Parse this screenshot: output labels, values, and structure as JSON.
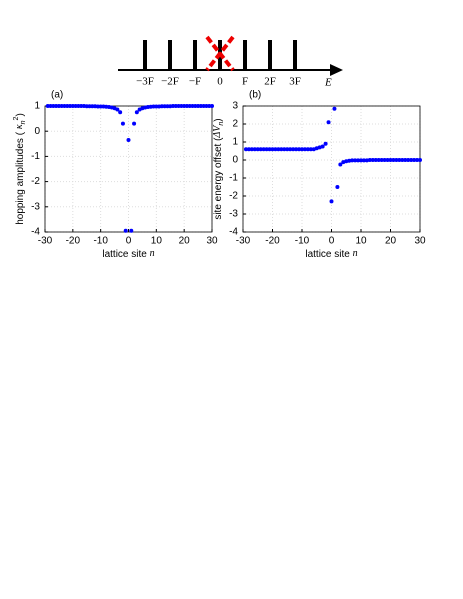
{
  "diagram": {
    "labels": [
      "−3F",
      "−2F",
      "−F",
      "0",
      "F",
      "2F",
      "3F"
    ],
    "axis_label": "E"
  },
  "chart_data": [
    {
      "type": "scatter",
      "panel": "(a)",
      "ylabel": {
        "text": "hopping amplitudes ( ",
        "symbol": "κ",
        "sub": "n",
        "sup": "2",
        "close": ")"
      },
      "xlabel": {
        "text": "lattice site ",
        "var": "n"
      },
      "color": "#0000ff",
      "grid": true,
      "xlim": [
        -30,
        30
      ],
      "xticks": [
        -30,
        -20,
        -10,
        0,
        10,
        20,
        30
      ],
      "ylim": [
        -4,
        1
      ],
      "yticks": [
        -4,
        -3,
        -2,
        -1,
        0,
        1
      ],
      "x": [
        -29,
        -28,
        -27,
        -26,
        -25,
        -24,
        -23,
        -22,
        -21,
        -20,
        -19,
        -18,
        -17,
        -16,
        -15,
        -14,
        -13,
        -12,
        -11,
        -10,
        -9,
        -8,
        -7,
        -6,
        -5,
        -4,
        -3,
        -2,
        -1,
        0,
        1,
        2,
        3,
        4,
        5,
        6,
        7,
        8,
        9,
        10,
        11,
        12,
        13,
        14,
        15,
        16,
        17,
        18,
        19,
        20,
        21,
        22,
        23,
        24,
        25,
        26,
        27,
        28,
        29,
        30
      ],
      "values": [
        1,
        1,
        1,
        1,
        1,
        1,
        1,
        1,
        1,
        1,
        1,
        1,
        1,
        1,
        0.99,
        0.99,
        0.99,
        0.99,
        0.98,
        0.98,
        0.98,
        0.97,
        0.96,
        0.94,
        0.91,
        0.86,
        0.75,
        0.3,
        -3.95,
        -0.35,
        -3.95,
        0.3,
        0.75,
        0.86,
        0.91,
        0.94,
        0.96,
        0.97,
        0.98,
        0.98,
        0.98,
        0.99,
        0.99,
        0.99,
        0.99,
        1,
        1,
        1,
        1,
        1,
        1,
        1,
        1,
        1,
        1,
        1,
        1,
        1,
        1,
        1
      ]
    },
    {
      "type": "scatter",
      "panel": "(b)",
      "ylabel": {
        "text": "site energy offset (",
        "symbol": "ΔV",
        "sub": "n",
        "close": ")"
      },
      "xlabel": {
        "text": "lattice site ",
        "var": "n"
      },
      "color": "#0000ff",
      "grid": true,
      "xlim": [
        -30,
        30
      ],
      "xticks": [
        -30,
        -20,
        -10,
        0,
        10,
        20,
        30
      ],
      "ylim": [
        -4,
        3
      ],
      "yticks": [
        -4,
        -3,
        -2,
        -1,
        0,
        1,
        2,
        3
      ],
      "x": [
        -29,
        -28,
        -27,
        -26,
        -25,
        -24,
        -23,
        -22,
        -21,
        -20,
        -19,
        -18,
        -17,
        -16,
        -15,
        -14,
        -13,
        -12,
        -11,
        -10,
        -9,
        -8,
        -7,
        -6,
        -5,
        -4,
        -3,
        -2,
        -1,
        0,
        1,
        2,
        3,
        4,
        5,
        6,
        7,
        8,
        9,
        10,
        11,
        12,
        13,
        14,
        15,
        16,
        17,
        18,
        19,
        20,
        21,
        22,
        23,
        24,
        25,
        26,
        27,
        28,
        29,
        30
      ],
      "values": [
        0.6,
        0.6,
        0.6,
        0.6,
        0.6,
        0.6,
        0.6,
        0.6,
        0.6,
        0.6,
        0.6,
        0.6,
        0.6,
        0.6,
        0.6,
        0.6,
        0.6,
        0.6,
        0.6,
        0.6,
        0.6,
        0.6,
        0.6,
        0.6,
        0.65,
        0.7,
        0.75,
        0.9,
        2.1,
        -2.3,
        2.85,
        -1.5,
        -0.25,
        -0.12,
        -0.07,
        -0.04,
        -0.02,
        -0.02,
        -0.02,
        -0.02,
        -0.02,
        -0.02,
        0,
        0,
        0,
        0,
        0,
        0,
        0,
        0,
        0,
        0,
        0,
        0,
        0,
        0,
        0,
        0,
        0,
        0
      ]
    }
  ]
}
